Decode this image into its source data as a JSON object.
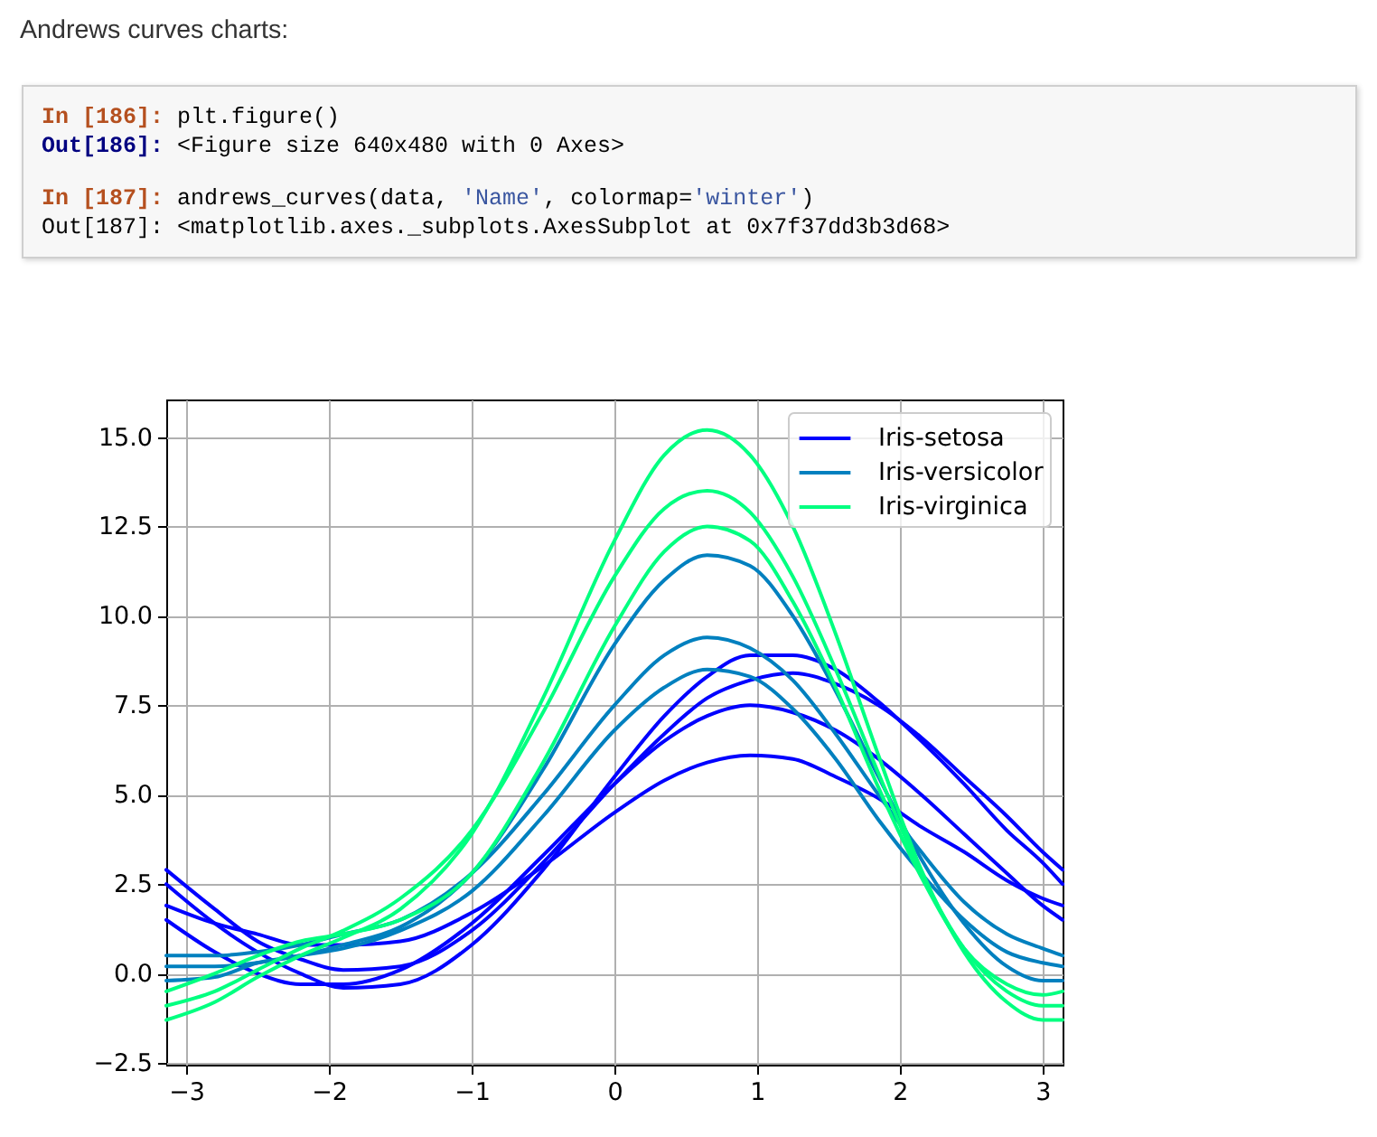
{
  "chart_data": {
    "type": "line",
    "title": "Andrews curves charts:",
    "annotations": [
      "In [186]: plt.figure()",
      "Out[186]: <Figure size 640x480 with 0 Axes>",
      "In [187]: andrews_curves(data, 'Name', colormap='winter')",
      "Out[187]: <matplotlib.axes._subplots.AxesSubplot at 0x7f37dd3b3d68>"
    ],
    "x": [
      -3.14,
      -2.8,
      -2.5,
      -2.2,
      -1.9,
      -1.5,
      -1,
      -0.5,
      0,
      0.35,
      0.65,
      0.95,
      1.25,
      1.55,
      1.85,
      2.15,
      2.45,
      2.75,
      3,
      3.14
    ],
    "series": [
      {
        "name": "Iris-setosa",
        "color": "#0000ff",
        "values": [
          2.9,
          1.8,
          0.9,
          0.4,
          0.1,
          0.2,
          1.2,
          3.1,
          5.3,
          6.7,
          7.7,
          8.2,
          8.4,
          8.1,
          7.5,
          6.6,
          5.5,
          4.4,
          3.4,
          2.9
        ]
      },
      {
        "color": "#0000ff",
        "values": [
          2.5,
          1.4,
          0.6,
          0,
          -0.4,
          -0.3,
          0.8,
          2.9,
          5.5,
          7.2,
          8.3,
          8.9,
          8.9,
          8.5,
          7.6,
          6.5,
          5.3,
          4.0,
          3.1,
          2.5
        ]
      },
      {
        "color": "#0000ff",
        "values": [
          1.9,
          1.4,
          1.1,
          0.8,
          0.8,
          0.9,
          1.7,
          3.0,
          4.5,
          5.4,
          5.9,
          6.1,
          6.0,
          5.5,
          4.9,
          4.1,
          3.4,
          2.6,
          2.1,
          1.9
        ]
      },
      {
        "color": "#0000ff",
        "values": [
          1.5,
          0.6,
          0,
          -0.3,
          -0.3,
          0.1,
          1.4,
          3.3,
          5.3,
          6.5,
          7.2,
          7.5,
          7.3,
          6.8,
          6.0,
          5.0,
          3.9,
          2.8,
          1.9,
          1.5
        ]
      },
      {
        "name": "Iris-versicolor",
        "color": "#0080bf",
        "values": [
          -0.2,
          -0.1,
          0.3,
          0.5,
          0.8,
          1.3,
          2.8,
          5.7,
          9.2,
          11.0,
          11.7,
          11.4,
          10.0,
          7.9,
          5.5,
          3.2,
          1.4,
          0.2,
          -0.2,
          -0.2
        ]
      },
      {
        "color": "#0080bf",
        "values": [
          0.5,
          0.5,
          0.6,
          0.8,
          1.1,
          1.5,
          2.8,
          5.0,
          7.5,
          8.9,
          9.4,
          9.1,
          8.2,
          6.7,
          5.0,
          3.4,
          2.0,
          1.1,
          0.7,
          0.5
        ]
      },
      {
        "color": "#0080bf",
        "values": [
          0.2,
          0.2,
          0.3,
          0.5,
          0.7,
          1.2,
          2.3,
          4.4,
          6.8,
          8.0,
          8.5,
          8.3,
          7.4,
          6.0,
          4.3,
          2.8,
          1.5,
          0.6,
          0.3,
          0.2
        ]
      },
      {
        "name": "Iris-virginica",
        "color": "#00ff80",
        "values": [
          -1.3,
          -0.8,
          -0.1,
          0.5,
          1.0,
          1.8,
          3.9,
          7.7,
          12.1,
          14.5,
          15.2,
          14.5,
          12.5,
          9.5,
          6.1,
          2.9,
          0.6,
          -0.8,
          -1.3,
          -1.3
        ]
      },
      {
        "color": "#00ff80",
        "values": [
          -0.5,
          0,
          0.5,
          0.9,
          1.1,
          1.5,
          2.8,
          5.9,
          9.7,
          11.8,
          12.5,
          12.1,
          10.4,
          8.0,
          5.2,
          2.7,
          0.7,
          -0.3,
          -0.6,
          -0.5
        ]
      },
      {
        "color": "#00ff80",
        "values": [
          -0.9,
          -0.5,
          0.1,
          0.7,
          1.2,
          2.1,
          4.0,
          7.3,
          11.1,
          13.0,
          13.5,
          12.9,
          11.1,
          8.5,
          5.6,
          2.8,
          0.7,
          -0.5,
          -0.9,
          -0.9
        ]
      }
    ],
    "xlim": [
      -3.14,
      3.14
    ],
    "xticks": [
      {
        "value": -3,
        "label": "−3"
      },
      {
        "value": -2,
        "label": "−2"
      },
      {
        "value": -1,
        "label": "−1"
      },
      0,
      1,
      2,
      3
    ],
    "ylim": [
      -2.55,
      16.05
    ],
    "yticks": [
      {
        "value": -2.5,
        "label": "−2.5"
      },
      {
        "value": 0,
        "label": "0.0"
      },
      2.5,
      {
        "value": 5,
        "label": "5.0"
      },
      7.5,
      {
        "value": 10,
        "label": "10.0"
      },
      12.5,
      {
        "value": 15,
        "label": "15.0"
      }
    ],
    "grid": true,
    "legend": "top right"
  }
}
